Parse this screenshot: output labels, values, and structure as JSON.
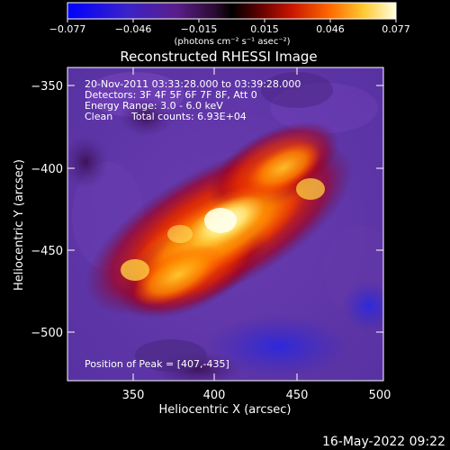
{
  "colorbar": {
    "tick_labels": [
      "−0.077",
      "−0.046",
      "−0.015",
      "0.015",
      "0.046",
      "0.077"
    ],
    "units": "(photons cm⁻² s⁻¹ asec⁻²)",
    "range": [
      -0.077,
      0.077
    ]
  },
  "image": {
    "title": "Reconstructed RHESSI Image",
    "time_range": "20-Nov-2011 03:33:28.000 to 03:39:28.000",
    "detectors": "Detectors: 3F 4F 5F 6F 7F 8F, Att 0",
    "energy_range": "Energy Range: 3.0 - 6.0 keV",
    "algorithm": "Clean",
    "total_counts": "Total counts: 6.93E+04",
    "peak_position": "Position of Peak = [407,-435]",
    "peak": [
      407,
      -435
    ]
  },
  "axes": {
    "x_label": "Heliocentric X (arcsec)",
    "y_label": "Heliocentric Y (arcsec)",
    "x_range": [
      310,
      500
    ],
    "y_range": [
      -530,
      -330
    ],
    "x_ticks": [
      "350",
      "400",
      "450",
      "500"
    ],
    "y_ticks": [
      "−350",
      "−400",
      "−450",
      "−500"
    ]
  },
  "footer": {
    "timestamp": "16-May-2022 09:22"
  }
}
